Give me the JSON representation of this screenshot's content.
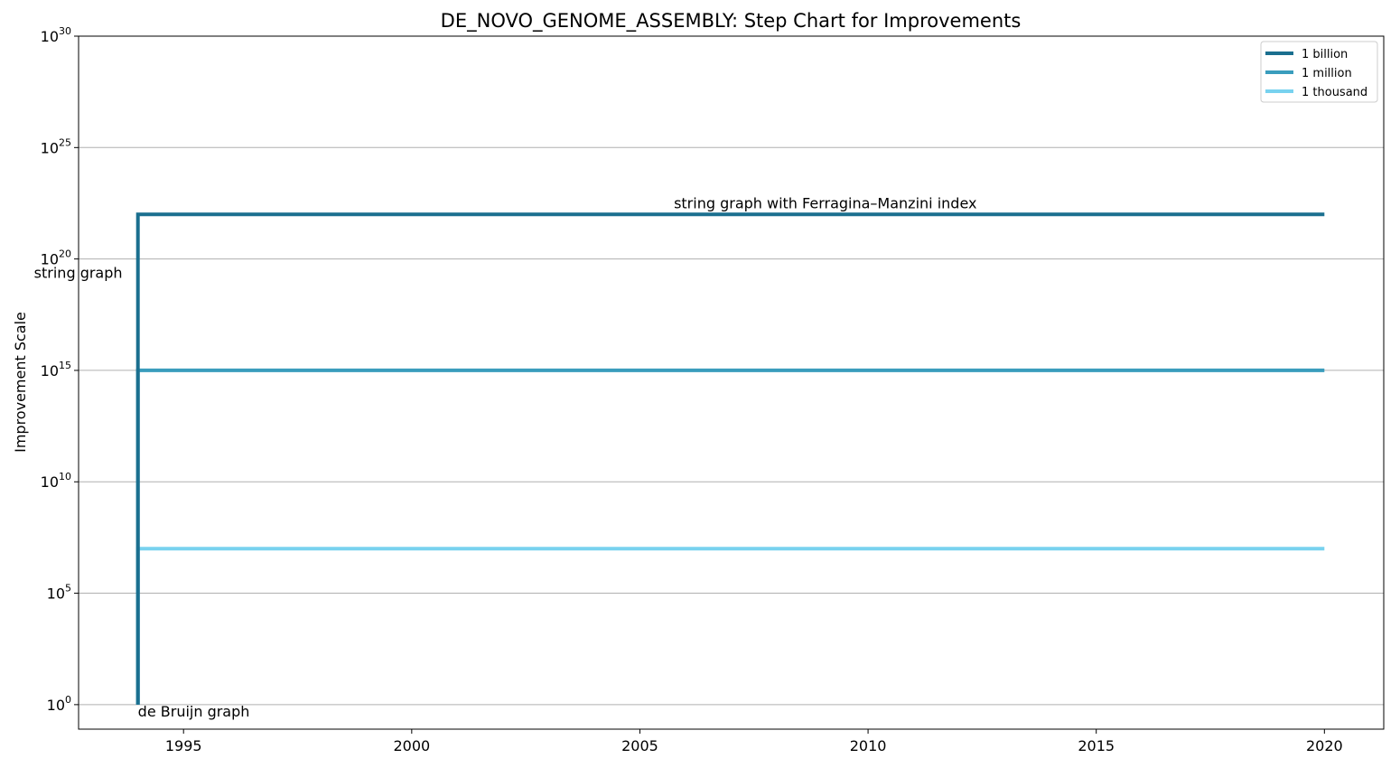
{
  "chart_data": {
    "type": "line",
    "title": "DE_NOVO_GENOME_ASSEMBLY: Step Chart for Improvements",
    "xlabel": "",
    "ylabel": "Improvement Scale",
    "yscale": "log",
    "xlim": [
      1992.7,
      2021.3
    ],
    "ylim_exponents": [
      -1.1,
      30
    ],
    "x_ticks": [
      1995,
      2000,
      2005,
      2010,
      2015,
      2020
    ],
    "y_ticks": [
      {
        "base": "10",
        "exp": "0",
        "value": 1
      },
      {
        "base": "10",
        "exp": "5",
        "value": 100000
      },
      {
        "base": "10",
        "exp": "10",
        "value": 10000000000
      },
      {
        "base": "10",
        "exp": "15",
        "value": 1000000000000000.0
      },
      {
        "base": "10",
        "exp": "20",
        "value": 1e+20
      },
      {
        "base": "10",
        "exp": "25",
        "value": 1e+25
      },
      {
        "base": "10",
        "exp": "30",
        "value": 1e+30
      }
    ],
    "grid": "horizontal",
    "legend_position": "top-right",
    "series": [
      {
        "name": "1 billion",
        "color": "#1a6f8f",
        "points": [
          {
            "x": 1994,
            "y": 1
          },
          {
            "x": 1994,
            "y": 1e+22
          },
          {
            "x": 2020,
            "y": 1e+22
          }
        ]
      },
      {
        "name": "1 million",
        "color": "#3a9dbd",
        "points": [
          {
            "x": 1994,
            "y": 1
          },
          {
            "x": 1994,
            "y": 1000000000000000.0
          },
          {
            "x": 2020,
            "y": 1000000000000000.0
          }
        ]
      },
      {
        "name": "1 thousand",
        "color": "#78d2ef",
        "points": [
          {
            "x": 1994,
            "y": 1
          },
          {
            "x": 1994,
            "y": 10000000.0
          },
          {
            "x": 2020,
            "y": 10000000.0
          }
        ]
      }
    ],
    "annotations": [
      {
        "text": "de Bruijn graph",
        "x": 1994,
        "y": 1
      },
      {
        "text": "string graph",
        "x": 1994,
        "y": 1e+20
      },
      {
        "text": "string graph with Ferragina–Manzini index",
        "x": 2010,
        "y": 1e+22
      }
    ]
  }
}
